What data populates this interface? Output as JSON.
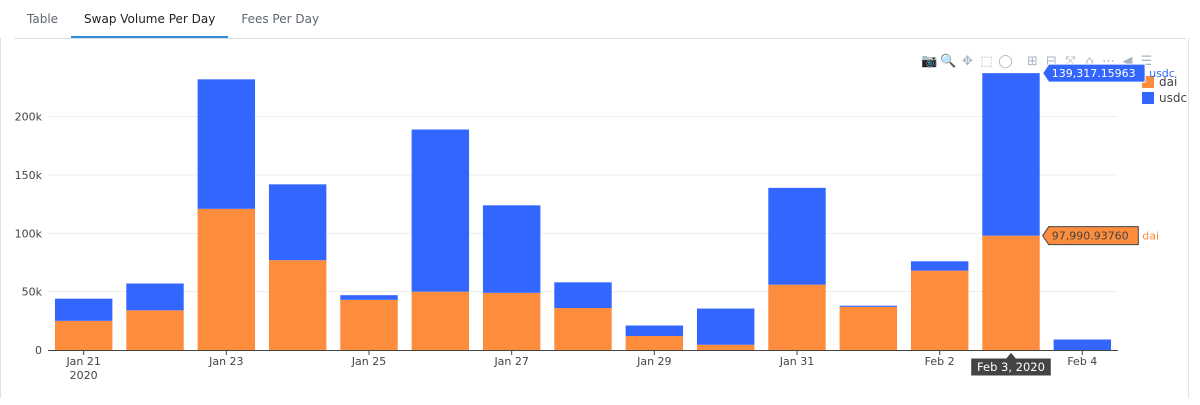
{
  "tabs": [
    {
      "label": "Table"
    },
    {
      "label": "Swap Volume Per Day"
    },
    {
      "label": "Fees Per Day"
    }
  ],
  "modebar": [
    {
      "name": "camera-icon",
      "glyph": "📷"
    },
    {
      "name": "zoom-icon",
      "glyph": "🔍"
    },
    {
      "name": "pan-icon",
      "glyph": "✥"
    },
    {
      "name": "box-select-icon",
      "glyph": "⬚"
    },
    {
      "name": "lasso-icon",
      "glyph": "◯"
    },
    {
      "name": "zoom-in-icon",
      "glyph": "⊞"
    },
    {
      "name": "zoom-out-icon",
      "glyph": "⊟"
    },
    {
      "name": "autoscale-icon",
      "glyph": "⤧"
    },
    {
      "name": "home-icon",
      "glyph": "⌂"
    },
    {
      "name": "spike-lines-icon",
      "glyph": "⋯"
    },
    {
      "name": "hover-closest-icon",
      "glyph": "◀"
    },
    {
      "name": "hover-compare-icon",
      "glyph": "☰"
    }
  ],
  "chart_data": {
    "type": "bar",
    "stacked": true,
    "categories": [
      "Jan 21",
      "Jan 22",
      "Jan 23",
      "Jan 24",
      "Jan 25",
      "Jan 26",
      "Jan 27",
      "Jan 28",
      "Jan 29",
      "Jan 30",
      "Jan 31",
      "Feb 1",
      "Feb 2",
      "Feb 3",
      "Feb 4"
    ],
    "x_tick_labels": [
      {
        "index": 0,
        "label": "Jan 21",
        "sublabel": "2020"
      },
      {
        "index": 2,
        "label": "Jan 23"
      },
      {
        "index": 4,
        "label": "Jan 25"
      },
      {
        "index": 6,
        "label": "Jan 27"
      },
      {
        "index": 8,
        "label": "Jan 29"
      },
      {
        "index": 10,
        "label": "Jan 31"
      },
      {
        "index": 12,
        "label": "Feb 2"
      },
      {
        "index": 14,
        "label": "Feb 4"
      }
    ],
    "series": [
      {
        "name": "dai",
        "color": "#fd8c3d",
        "values": [
          25000,
          34000,
          121000,
          77000,
          43000,
          50000,
          49000,
          36000,
          12000,
          4500,
          56000,
          37000,
          68000,
          97990.9376,
          0
        ]
      },
      {
        "name": "usdc",
        "color": "#3366ff",
        "values": [
          19000,
          23000,
          111000,
          65000,
          4000,
          139000,
          75000,
          22000,
          9000,
          31000,
          83000,
          1000,
          8000,
          139317.15963,
          9000
        ]
      }
    ],
    "ylim": [
      0,
      240000
    ],
    "y_ticks": [
      {
        "value": 0,
        "label": "0"
      },
      {
        "value": 50000,
        "label": "50k"
      },
      {
        "value": 100000,
        "label": "100k"
      },
      {
        "value": 150000,
        "label": "150k"
      },
      {
        "value": 200000,
        "label": "200k"
      }
    ],
    "grid": true,
    "legend_position": "top-right",
    "hover": {
      "index": 13,
      "x_label": "Feb 3, 2020",
      "items": [
        {
          "series": "usdc",
          "text": "139,317.15963"
        },
        {
          "series": "dai",
          "text": "97,990.93760"
        }
      ]
    }
  }
}
